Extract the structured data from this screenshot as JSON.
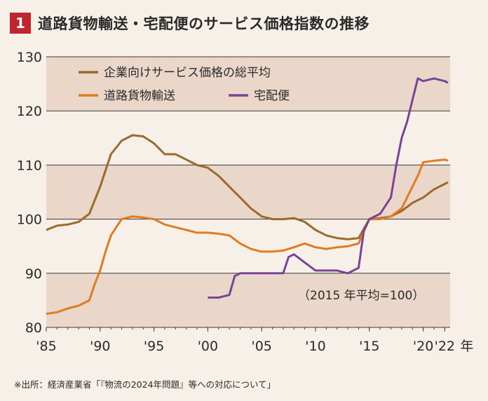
{
  "header": {
    "figure_number": "1",
    "title": "道路貨物輸送・宅配便のサービス価格指数の推移"
  },
  "source_note": "※出所：経済産業省「『物流の2024年問題』等への対応について」",
  "colors": {
    "band": "#ead7c9",
    "axis": "#3a3a3a",
    "overall": "#9b6a2e",
    "road": "#e07b22",
    "parcel": "#7b4396",
    "badge": "#c0252e"
  },
  "chart_data": {
    "type": "line",
    "ylim": [
      80,
      130
    ],
    "xlim": [
      1985,
      2022.5
    ],
    "y_ticks": [
      "80",
      "90",
      "100",
      "110",
      "120",
      "130"
    ],
    "x_tick_labels": [
      {
        "x": 1985,
        "label": "'85"
      },
      {
        "x": 1990,
        "label": "'90"
      },
      {
        "x": 1995,
        "label": "'95"
      },
      {
        "x": 2000,
        "label": "'00"
      },
      {
        "x": 2005,
        "label": "'05"
      },
      {
        "x": 2010,
        "label": "'10"
      },
      {
        "x": 2015,
        "label": "'15"
      },
      {
        "x": 2020,
        "label": "'20"
      },
      {
        "x": 2022,
        "label": "'22"
      }
    ],
    "x_unit": "年",
    "annotation": "（2015 年平均=100）",
    "legend": [
      {
        "name": "企業向けサービス価格の総平均",
        "color": "#9b6a2e"
      },
      {
        "name": "道路貨物輸送",
        "color": "#e07b22"
      },
      {
        "name": "宅配便",
        "color": "#7b4396"
      }
    ],
    "series": [
      {
        "name": "企業向けサービス価格の総平均",
        "color": "#9b6a2e",
        "points": [
          [
            1985,
            98
          ],
          [
            1986,
            98.8
          ],
          [
            1987,
            99
          ],
          [
            1988,
            99.5
          ],
          [
            1989,
            101
          ],
          [
            1990,
            106
          ],
          [
            1990.5,
            109
          ],
          [
            1991,
            112
          ],
          [
            1992,
            114.5
          ],
          [
            1993,
            115.5
          ],
          [
            1994,
            115.3
          ],
          [
            1995,
            114
          ],
          [
            1996,
            112
          ],
          [
            1997,
            112
          ],
          [
            1998,
            111
          ],
          [
            1999,
            110
          ],
          [
            2000,
            109.5
          ],
          [
            2001,
            108
          ],
          [
            2002,
            106
          ],
          [
            2003,
            104
          ],
          [
            2004,
            102
          ],
          [
            2005,
            100.5
          ],
          [
            2006,
            100
          ],
          [
            2007,
            100
          ],
          [
            2008,
            100.2
          ],
          [
            2009,
            99.5
          ],
          [
            2010,
            98
          ],
          [
            2011,
            97
          ],
          [
            2012,
            96.5
          ],
          [
            2013,
            96.3
          ],
          [
            2014,
            96.5
          ],
          [
            2015,
            100
          ],
          [
            2016,
            100.2
          ],
          [
            2017,
            100.5
          ],
          [
            2018,
            101.5
          ],
          [
            2019,
            103
          ],
          [
            2020,
            104
          ],
          [
            2021,
            105.5
          ],
          [
            2022,
            106.5
          ],
          [
            2022.3,
            106.8
          ]
        ]
      },
      {
        "name": "道路貨物輸送",
        "color": "#e07b22",
        "points": [
          [
            1985,
            82.5
          ],
          [
            1986,
            82.8
          ],
          [
            1987,
            83.5
          ],
          [
            1988,
            84
          ],
          [
            1989,
            85
          ],
          [
            1989.5,
            88
          ],
          [
            1990,
            90.5
          ],
          [
            1990.5,
            94
          ],
          [
            1991,
            97
          ],
          [
            1992,
            100
          ],
          [
            1993,
            100.5
          ],
          [
            1994,
            100.3
          ],
          [
            1995,
            100
          ],
          [
            1996,
            99
          ],
          [
            1997,
            98.5
          ],
          [
            1998,
            98
          ],
          [
            1999,
            97.5
          ],
          [
            2000,
            97.5
          ],
          [
            2001,
            97.3
          ],
          [
            2002,
            97
          ],
          [
            2003,
            95.5
          ],
          [
            2004,
            94.5
          ],
          [
            2005,
            94
          ],
          [
            2006,
            94
          ],
          [
            2007,
            94.2
          ],
          [
            2008,
            94.8
          ],
          [
            2009,
            95.5
          ],
          [
            2010,
            94.8
          ],
          [
            2011,
            94.5
          ],
          [
            2012,
            94.8
          ],
          [
            2013,
            95
          ],
          [
            2014,
            95.5
          ],
          [
            2015,
            100
          ],
          [
            2016,
            100
          ],
          [
            2017,
            100.5
          ],
          [
            2018,
            102
          ],
          [
            2019,
            106
          ],
          [
            2019.5,
            108
          ],
          [
            2020,
            110.5
          ],
          [
            2021,
            110.8
          ],
          [
            2022,
            111
          ],
          [
            2022.3,
            110.8
          ]
        ]
      },
      {
        "name": "宅配便",
        "color": "#7b4396",
        "points": [
          [
            2000,
            85.5
          ],
          [
            2001,
            85.5
          ],
          [
            2002,
            86
          ],
          [
            2002.5,
            89.5
          ],
          [
            2003,
            90
          ],
          [
            2004,
            90
          ],
          [
            2005,
            90
          ],
          [
            2006,
            90
          ],
          [
            2007,
            90
          ],
          [
            2007.5,
            93
          ],
          [
            2008,
            93.5
          ],
          [
            2009,
            92
          ],
          [
            2010,
            90.5
          ],
          [
            2011,
            90.5
          ],
          [
            2012,
            90.5
          ],
          [
            2013,
            90
          ],
          [
            2014,
            91
          ],
          [
            2014.5,
            98
          ],
          [
            2015,
            100
          ],
          [
            2016,
            101
          ],
          [
            2017,
            104
          ],
          [
            2017.5,
            110
          ],
          [
            2018,
            115
          ],
          [
            2018.5,
            118
          ],
          [
            2019,
            122
          ],
          [
            2019.5,
            126
          ],
          [
            2020,
            125.5
          ],
          [
            2021,
            126
          ],
          [
            2022,
            125.5
          ],
          [
            2022.3,
            125.2
          ]
        ]
      }
    ]
  }
}
